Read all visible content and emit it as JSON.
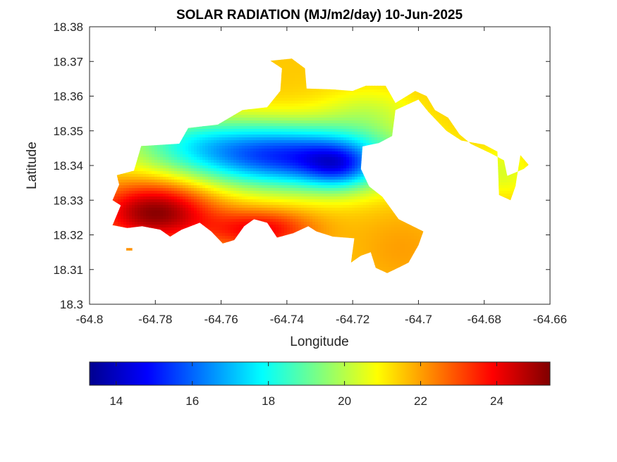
{
  "chart_data": {
    "type": "heatmap",
    "title": "SOLAR RADIATION (MJ/m2/day) 10-Jun-2025",
    "xlabel": "Longitude",
    "ylabel": "Latitude",
    "xlim": [
      -64.8,
      -64.66
    ],
    "ylim": [
      18.3,
      18.38
    ],
    "xticks": [
      "-64.8",
      "-64.78",
      "-64.76",
      "-64.74",
      "-64.72",
      "-64.7",
      "-64.68",
      "-64.66"
    ],
    "yticks": [
      "18.3",
      "18.31",
      "18.32",
      "18.33",
      "18.34",
      "18.35",
      "18.36",
      "18.37",
      "18.38"
    ],
    "grid": false,
    "colormap": "jet",
    "colorbar": {
      "orientation": "horizontal",
      "placement": "bottom",
      "range": [
        13.3,
        25.4
      ],
      "ticks": [
        "14",
        "16",
        "18",
        "20",
        "22",
        "24"
      ]
    },
    "field": {
      "regions": [
        {
          "name": "main",
          "outline": [
            [
              -64.7917,
              18.3372
            ],
            [
              -64.7865,
              18.3385
            ],
            [
              -64.7843,
              18.3456
            ],
            [
              -64.7727,
              18.3463
            ],
            [
              -64.77,
              18.3508
            ],
            [
              -64.761,
              18.3518
            ],
            [
              -64.7535,
              18.356
            ],
            [
              -64.746,
              18.3568
            ],
            [
              -64.742,
              18.3615
            ],
            [
              -64.7415,
              18.368
            ],
            [
              -64.745,
              18.3702
            ],
            [
              -64.7385,
              18.3708
            ],
            [
              -64.7345,
              18.368
            ],
            [
              -64.734,
              18.3622
            ],
            [
              -64.727,
              18.362
            ],
            [
              -64.72,
              18.3615
            ],
            [
              -64.716,
              18.363
            ],
            [
              -64.71,
              18.363
            ],
            [
              -64.707,
              18.358
            ],
            [
              -64.701,
              18.3615
            ],
            [
              -64.6975,
              18.36
            ],
            [
              -64.695,
              18.356
            ],
            [
              -64.691,
              18.3538
            ],
            [
              -64.6875,
              18.349
            ],
            [
              -64.684,
              18.3462
            ],
            [
              -64.678,
              18.3435
            ],
            [
              -64.674,
              18.3415
            ],
            [
              -64.673,
              18.337
            ],
            [
              -64.668,
              18.339
            ],
            [
              -64.6665,
              18.3402
            ],
            [
              -64.669,
              18.343
            ],
            [
              -64.6705,
              18.334
            ],
            [
              -64.672,
              18.33
            ],
            [
              -64.6755,
              18.3315
            ],
            [
              -64.676,
              18.344
            ],
            [
              -64.68,
              18.346
            ],
            [
              -64.687,
              18.3472
            ],
            [
              -64.6915,
              18.35
            ],
            [
              -64.697,
              18.3555
            ],
            [
              -64.7,
              18.359
            ],
            [
              -64.707,
              18.356
            ],
            [
              -64.708,
              18.3485
            ],
            [
              -64.712,
              18.3465
            ],
            [
              -64.717,
              18.3455
            ],
            [
              -64.7175,
              18.339
            ],
            [
              -64.715,
              18.334
            ],
            [
              -64.711,
              18.331
            ],
            [
              -64.706,
              18.3245
            ],
            [
              -64.6985,
              18.321
            ],
            [
              -64.7,
              18.317
            ],
            [
              -64.703,
              18.312
            ],
            [
              -64.7055,
              18.3108
            ],
            [
              -64.7095,
              18.309
            ],
            [
              -64.713,
              18.3105
            ],
            [
              -64.7145,
              18.315
            ],
            [
              -64.7175,
              18.314
            ],
            [
              -64.7205,
              18.312
            ],
            [
              -64.7195,
              18.319
            ],
            [
              -64.726,
              18.3195
            ],
            [
              -64.731,
              18.321
            ],
            [
              -64.7335,
              18.3225
            ],
            [
              -64.738,
              18.3205
            ],
            [
              -64.743,
              18.3192
            ],
            [
              -64.746,
              18.3235
            ],
            [
              -64.75,
              18.3245
            ],
            [
              -64.753,
              18.3225
            ],
            [
              -64.756,
              18.3185
            ],
            [
              -64.7595,
              18.3175
            ],
            [
              -64.763,
              18.321
            ],
            [
              -64.7665,
              18.3235
            ],
            [
              -64.772,
              18.3215
            ],
            [
              -64.7755,
              18.3195
            ],
            [
              -64.7785,
              18.3215
            ],
            [
              -64.784,
              18.3225
            ],
            [
              -64.7885,
              18.322
            ],
            [
              -64.793,
              18.3228
            ],
            [
              -64.7905,
              18.3285
            ],
            [
              -64.793,
              18.33
            ],
            [
              -64.791,
              18.3345
            ]
          ]
        },
        {
          "name": "islet",
          "outline": [
            [
              -64.7888,
              18.3155
            ],
            [
              -64.787,
              18.3155
            ],
            [
              -64.787,
              18.3162
            ],
            [
              -64.7888,
              18.3162
            ]
          ]
        }
      ],
      "base": 21.5,
      "components": [
        {
          "lon": -64.738,
          "lat": 18.3425,
          "sx": 0.022,
          "sy": 0.0065,
          "amp": -6.0
        },
        {
          "lon": -64.724,
          "lat": 18.3395,
          "sx": 0.0075,
          "sy": 0.0045,
          "amp": -2.5
        },
        {
          "lon": -64.77,
          "lat": 18.347,
          "sx": 0.016,
          "sy": 0.006,
          "amp": -2.0
        },
        {
          "lon": -64.78,
          "lat": 18.3265,
          "sx": 0.012,
          "sy": 0.006,
          "amp": 3.8
        },
        {
          "lon": -64.748,
          "lat": 18.3215,
          "sx": 0.011,
          "sy": 0.004,
          "amp": 2.5
        },
        {
          "lon": -64.705,
          "lat": 18.316,
          "sx": 0.01,
          "sy": 0.008,
          "amp": 0.5
        },
        {
          "lon": -64.715,
          "lat": 18.356,
          "sx": 0.01,
          "sy": 0.005,
          "amp": -1.0
        },
        {
          "lon": -64.674,
          "lat": 18.338,
          "sx": 0.006,
          "sy": 0.005,
          "amp": -1.0
        }
      ]
    }
  }
}
